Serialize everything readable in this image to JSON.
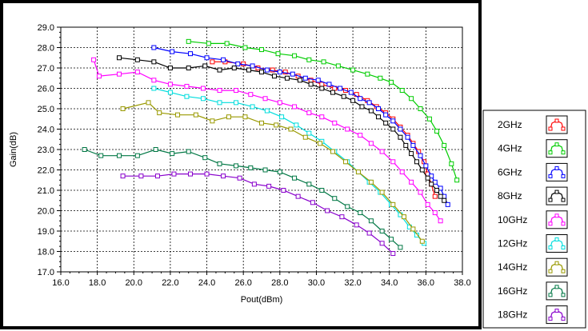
{
  "chart_data": {
    "type": "line",
    "xlabel": "Pout(dBm)",
    "ylabel": "Gain(dB)",
    "xlim": [
      16,
      38
    ],
    "ylim": [
      17,
      29
    ],
    "x_ticks": [
      "16.0",
      "18.0",
      "20.0",
      "22.0",
      "24.0",
      "26.0",
      "28.0",
      "30.0",
      "32.0",
      "34.0",
      "36.0",
      "38.0"
    ],
    "y_ticks": [
      "17.0",
      "18.0",
      "19.0",
      "20.0",
      "21.0",
      "22.0",
      "23.0",
      "24.0",
      "25.0",
      "26.0",
      "27.0",
      "28.0",
      "29.0"
    ],
    "grid": true,
    "legend_position": "right",
    "series": [
      {
        "name": "2GHz",
        "color": "#ff0000",
        "x": [
          24.3,
          25.0,
          26.0,
          26.8,
          27.6,
          28.3,
          29.0,
          29.7,
          30.3,
          31.0,
          31.6,
          32.2,
          32.8,
          33.3,
          33.8,
          34.2,
          34.6,
          35.0,
          35.3,
          35.6,
          35.9,
          36.1,
          36.3,
          36.5
        ],
        "y": [
          27.3,
          27.3,
          27.2,
          27.0,
          26.9,
          26.8,
          26.6,
          26.4,
          26.2,
          26.0,
          25.9,
          25.7,
          25.4,
          25.1,
          24.8,
          24.5,
          24.1,
          23.7,
          23.3,
          22.9,
          22.4,
          21.8,
          21.3,
          20.7
        ]
      },
      {
        "name": "4GHz",
        "color": "#00cc00",
        "x": [
          23.0,
          24.1,
          25.1,
          26.1,
          27.0,
          27.9,
          28.8,
          29.6,
          30.4,
          31.2,
          32.0,
          32.8,
          33.5,
          34.1,
          34.7,
          35.2,
          35.7,
          36.2,
          36.6,
          37.0,
          37.4,
          37.7
        ],
        "y": [
          28.3,
          28.2,
          28.2,
          28.0,
          27.9,
          27.7,
          27.6,
          27.4,
          27.3,
          27.1,
          26.9,
          26.7,
          26.5,
          26.3,
          25.9,
          25.5,
          25.0,
          24.5,
          23.9,
          23.2,
          22.3,
          21.5
        ]
      },
      {
        "name": "6GHz",
        "color": "#0000ff",
        "x": [
          21.1,
          22.1,
          23.1,
          24.0,
          24.9,
          25.7,
          26.5,
          27.3,
          28.0,
          28.7,
          29.4,
          30.1,
          30.7,
          31.3,
          31.9,
          32.4,
          32.9,
          33.4,
          33.8,
          34.2,
          34.6,
          35.0,
          35.3,
          35.7,
          36.0,
          36.3,
          36.5,
          36.8,
          37.0,
          37.2
        ],
        "y": [
          28.0,
          27.8,
          27.7,
          27.5,
          27.4,
          27.2,
          27.1,
          26.9,
          26.8,
          26.7,
          26.5,
          26.4,
          26.2,
          26.0,
          25.8,
          25.5,
          25.3,
          25.0,
          24.7,
          24.4,
          24.0,
          23.6,
          23.2,
          22.7,
          22.2,
          21.7,
          21.4,
          21.1,
          20.7,
          20.3
        ]
      },
      {
        "name": "8GHz",
        "color": "#000000",
        "x": [
          19.2,
          20.2,
          21.1,
          22.0,
          23.0,
          23.9,
          24.7,
          25.5,
          26.3,
          27.0,
          27.7,
          28.4,
          29.1,
          29.7,
          30.3,
          30.9,
          31.5,
          32.0,
          32.5,
          33.0,
          33.4,
          33.8,
          34.2,
          34.6,
          34.9,
          35.2,
          35.5,
          35.8,
          36.1,
          36.3,
          36.6,
          36.8,
          37.0
        ],
        "y": [
          27.5,
          27.4,
          27.3,
          27.0,
          27.0,
          27.1,
          26.9,
          27.0,
          26.9,
          26.8,
          26.6,
          26.5,
          26.4,
          26.2,
          26.0,
          25.8,
          25.6,
          25.4,
          25.1,
          24.9,
          24.6,
          24.3,
          24.0,
          23.6,
          23.2,
          22.8,
          22.4,
          22.0,
          21.6,
          21.3,
          21.0,
          20.7,
          20.5
        ]
      },
      {
        "name": "10GHz",
        "color": "#ff00ff",
        "x": [
          17.8,
          18.1,
          19.2,
          20.2,
          21.1,
          22.0,
          22.9,
          23.8,
          24.7,
          25.6,
          26.4,
          27.2,
          28.0,
          28.8,
          29.6,
          30.3,
          31.0,
          31.7,
          32.4,
          33.0,
          33.6,
          34.2,
          34.7,
          35.2,
          35.7,
          36.1,
          36.5,
          36.8
        ],
        "y": [
          27.4,
          26.6,
          26.7,
          26.8,
          26.4,
          26.2,
          26.1,
          26.0,
          25.9,
          25.9,
          25.7,
          25.5,
          25.3,
          25.1,
          24.8,
          24.6,
          24.3,
          24.0,
          23.7,
          23.3,
          22.9,
          22.4,
          21.9,
          21.4,
          20.9,
          20.3,
          19.9,
          19.5
        ]
      },
      {
        "name": "12GHz",
        "color": "#00dddd",
        "x": [
          21.1,
          22.0,
          22.9,
          23.8,
          24.7,
          25.6,
          26.5,
          27.3,
          28.1,
          28.9,
          29.6,
          30.3,
          31.0,
          31.7,
          32.3,
          32.9,
          33.5,
          34.1,
          34.6,
          35.1,
          35.5,
          35.9
        ],
        "y": [
          26.0,
          25.8,
          25.6,
          25.5,
          25.3,
          25.3,
          25.1,
          24.9,
          24.6,
          24.2,
          23.8,
          23.4,
          22.9,
          22.4,
          21.9,
          21.4,
          20.9,
          20.3,
          19.8,
          19.2,
          18.8,
          18.4
        ]
      },
      {
        "name": "14GHz",
        "color": "#999900",
        "x": [
          19.4,
          20.8,
          21.4,
          22.4,
          23.4,
          24.3,
          25.2,
          26.1,
          27.0,
          27.8,
          28.6,
          29.4,
          30.2,
          30.9,
          31.6,
          32.3,
          33.0,
          33.6,
          34.2,
          34.8,
          35.3,
          35.8
        ],
        "y": [
          25.0,
          25.3,
          24.8,
          24.7,
          24.7,
          24.4,
          24.6,
          24.6,
          24.3,
          24.2,
          24.0,
          23.6,
          23.3,
          22.9,
          22.4,
          21.9,
          21.4,
          20.9,
          20.3,
          19.7,
          19.1,
          18.5
        ]
      },
      {
        "name": "16GHz",
        "color": "#007744",
        "x": [
          17.3,
          18.2,
          19.2,
          20.2,
          21.2,
          22.1,
          23.0,
          23.9,
          24.7,
          25.6,
          26.4,
          27.2,
          28.0,
          28.8,
          29.6,
          30.3,
          31.0,
          31.7,
          32.4,
          33.0,
          33.6,
          34.1,
          34.6
        ],
        "y": [
          23.0,
          22.7,
          22.7,
          22.7,
          23.0,
          22.8,
          22.9,
          22.6,
          22.3,
          22.2,
          22.1,
          22.0,
          21.9,
          21.6,
          21.3,
          21.0,
          20.6,
          20.2,
          19.9,
          19.5,
          19.0,
          18.6,
          18.2
        ]
      },
      {
        "name": "18GHz",
        "color": "#8800cc",
        "x": [
          19.4,
          20.4,
          21.3,
          22.2,
          23.1,
          24.0,
          24.9,
          25.8,
          26.6,
          27.4,
          28.2,
          29.0,
          29.8,
          30.6,
          31.4,
          32.2,
          32.9,
          33.6,
          34.2
        ],
        "y": [
          21.7,
          21.7,
          21.7,
          21.8,
          21.8,
          21.8,
          21.7,
          21.6,
          21.3,
          21.2,
          21.0,
          20.7,
          20.4,
          20.0,
          19.7,
          19.3,
          18.9,
          18.4,
          17.9
        ]
      }
    ]
  }
}
